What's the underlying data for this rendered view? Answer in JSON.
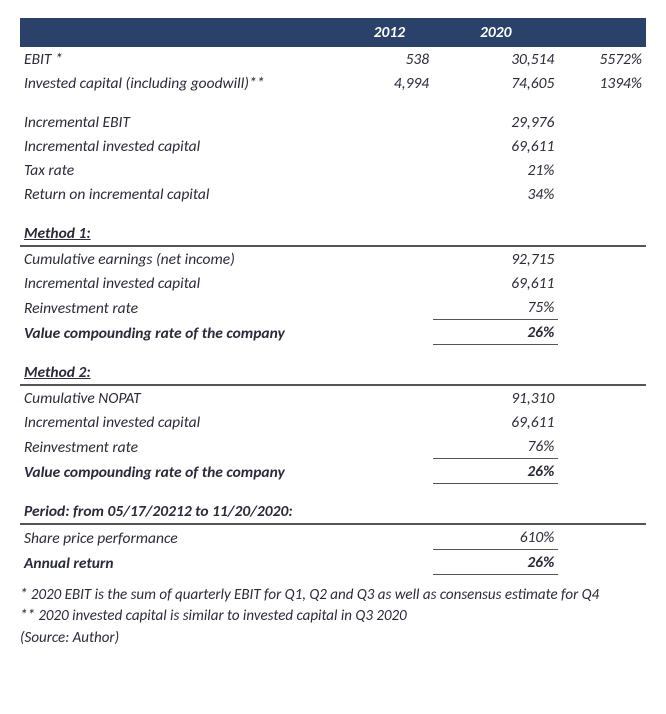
{
  "colors": {
    "header_bg": "#2a4169",
    "header_text": "#ffffff",
    "body_text": "#2a2a3a",
    "rule": "#555555",
    "page_bg": "#ffffff"
  },
  "typography": {
    "font_family": "Calibri",
    "base_size_pt": 12,
    "italic_body": true
  },
  "header": {
    "y2012": "2012",
    "y2020": "2020"
  },
  "top_rows": [
    {
      "label": "EBIT *",
      "v2012": "538",
      "v2020": "30,514",
      "pct": "5572%"
    },
    {
      "label": "Invested capital (including goodwill)**",
      "v2012": "4,994",
      "v2020": "74,605",
      "pct": "1394%"
    }
  ],
  "mid_rows": [
    {
      "label": "Incremental EBIT",
      "v2020": "29,976"
    },
    {
      "label": "Incremental invested capital",
      "v2020": "69,611"
    },
    {
      "label": "Tax rate",
      "v2020": "21%"
    },
    {
      "label": "Return on incremental capital",
      "v2020": "34%"
    }
  ],
  "method1": {
    "title": "Method 1:",
    "rows": [
      {
        "label": "Cumulative earnings (net income)",
        "v2020": "92,715"
      },
      {
        "label": "Incremental invested capital",
        "v2020": "69,611"
      },
      {
        "label": "Reinvestment rate",
        "v2020": "75%",
        "underline": true
      }
    ],
    "result_label": "Value compounding rate of the company",
    "result_value": "26%"
  },
  "method2": {
    "title": "Method 2:",
    "rows": [
      {
        "label": "Cumulative NOPAT",
        "v2020": "91,310"
      },
      {
        "label": "Incremental invested capital",
        "v2020": "69,611"
      },
      {
        "label": "Reinvestment rate",
        "v2020": "76%",
        "underline": true
      }
    ],
    "result_label": "Value compounding rate of the company",
    "result_value": "26%"
  },
  "period": {
    "title": "Period: from 05/17/20212 to 11/20/2020:",
    "row": {
      "label": "Share price performance",
      "v2020": "610%"
    },
    "result_label": "Annual return",
    "result_value": "26%"
  },
  "footnotes": [
    "* 2020 EBIT is the sum of quarterly EBIT for Q1, Q2 and Q3 as well as consensus estimate for Q4",
    "** 2020 invested capital is similar to invested capital in Q3 2020",
    "(Source: Author)"
  ]
}
